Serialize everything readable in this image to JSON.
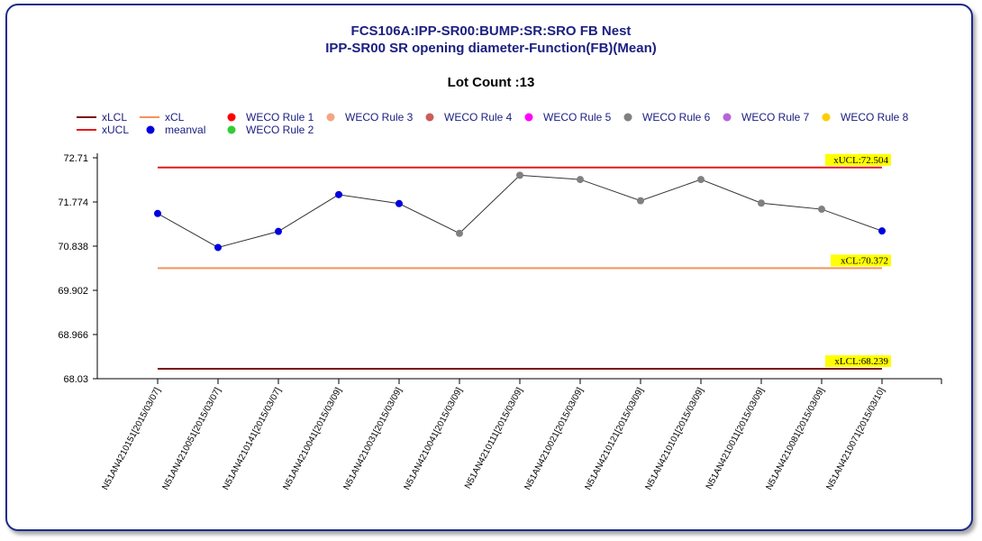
{
  "chart_data": {
    "type": "line",
    "title": "FCS106A:IPP-SR00:BUMP:SR:SRO FB Nest",
    "subtitle": "IPP-SR00 SR opening diameter-Function(FB)(Mean)",
    "annotation": "Lot Count :13",
    "ylim": [
      68.03,
      72.71
    ],
    "yticks": [
      "72.71",
      "71.774",
      "70.838",
      "69.902",
      "68.966",
      "68.03"
    ],
    "ytick_values": [
      72.71,
      71.774,
      70.838,
      69.902,
      68.966,
      68.03
    ],
    "categories": [
      "N51AN4210151[2015/03/07]",
      "N51AN4210051[2015/03/07]",
      "N51AN4210141[2015/03/07]",
      "N51AN4210041[2015/03/09]",
      "N51AN4210031[2015/03/09]",
      "N51AN4210041[2015/03/09]",
      "N51AN4210111[2015/03/09]",
      "N51AN4210021[2015/03/09]",
      "N51AN4210121[2015/03/09]",
      "N51AN4210101[2015/03/09]",
      "N51AN4210011[2015/03/09]",
      "N51AN4210081[2015/03/09]",
      "N51AN4210071[2015/03/10]"
    ],
    "series": [
      {
        "name": "meanval",
        "values": [
          71.53,
          70.81,
          71.15,
          71.93,
          71.74,
          71.11,
          72.34,
          72.25,
          71.8,
          72.25,
          71.75,
          71.62,
          71.16
        ],
        "point_colors": [
          "#0000dd",
          "#0000dd",
          "#0000dd",
          "#0000dd",
          "#0000dd",
          "#808080",
          "#808080",
          "#808080",
          "#808080",
          "#808080",
          "#808080",
          "#808080",
          "#0000dd"
        ]
      }
    ],
    "limits": [
      {
        "name": "xUCL",
        "value": 72.504,
        "label": "xUCL:72.504",
        "color": "#e31a1c"
      },
      {
        "name": "xCL",
        "value": 70.372,
        "label": "xCL:70.372",
        "color": "#f4935b"
      },
      {
        "name": "xLCL",
        "value": 68.239,
        "label": "xLCL:68.239",
        "color": "#7b0c0c"
      }
    ],
    "legend": {
      "placement": "top-left",
      "items": [
        {
          "label": "xLCL",
          "kind": "line",
          "color": "#7b0c0c"
        },
        {
          "label": "xUCL",
          "kind": "line",
          "color": "#e31a1c"
        },
        {
          "label": "xCL",
          "kind": "line",
          "color": "#f4935b"
        },
        {
          "label": "meanval",
          "kind": "dot",
          "color": "#0000dd"
        },
        {
          "label": "WECO Rule 1",
          "kind": "dot",
          "color": "#ff0000"
        },
        {
          "label": "WECO Rule 2",
          "kind": "dot",
          "color": "#33cc33"
        },
        {
          "label": "WECO Rule 3",
          "kind": "dot",
          "color": "#f4a582"
        },
        {
          "label": "WECO Rule 4",
          "kind": "dot",
          "color": "#cd5c5c"
        },
        {
          "label": "WECO Rule 5",
          "kind": "dot",
          "color": "#ff00ff"
        },
        {
          "label": "WECO Rule 6",
          "kind": "dot",
          "color": "#808080"
        },
        {
          "label": "WECO Rule 7",
          "kind": "dot",
          "color": "#b565d9"
        },
        {
          "label": "WECO Rule 8",
          "kind": "dot",
          "color": "#ffcc00"
        }
      ]
    },
    "grid": false,
    "colors": {
      "text": "#1c2080",
      "line": "#333333",
      "label_bg": "#ffff00"
    }
  }
}
